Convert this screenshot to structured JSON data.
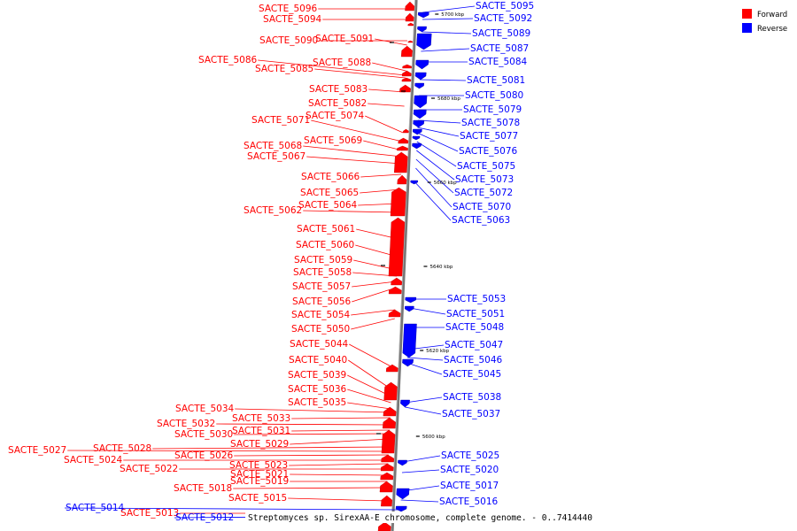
{
  "legend": [
    {
      "label": "Forward",
      "color": "#ff0000"
    },
    {
      "label": "Reverse",
      "color": "#0000ff"
    }
  ],
  "caption": "Streptomyces sp. SirexAA-E chromosome, complete genome. - 0..7414440",
  "ticks": [
    "5700 kbp",
    "5680 kbp",
    "5660 kbp",
    "5640 kbp",
    "5620 kbp",
    "5600 kbp"
  ],
  "forward_labels": [
    "SACTE_5096",
    "SACTE_5094",
    "SACTE_5090",
    "SACTE_5091",
    "SACTE_5086",
    "SACTE_5088",
    "SACTE_5085",
    "SACTE_5083",
    "SACTE_5082",
    "SACTE_5071",
    "SACTE_5074",
    "SACTE_5069",
    "SACTE_5068",
    "SACTE_5067",
    "SACTE_5066",
    "SACTE_5065",
    "SACTE_5064",
    "SACTE_5062",
    "SACTE_5061",
    "SACTE_5060",
    "SACTE_5059",
    "SACTE_5058",
    "SACTE_5057",
    "SACTE_5056",
    "SACTE_5054",
    "SACTE_5050",
    "SACTE_5044",
    "SACTE_5040",
    "SACTE_5039",
    "SACTE_5036",
    "SACTE_5035",
    "SACTE_5034",
    "SACTE_5033",
    "SACTE_5032",
    "SACTE_5031",
    "SACTE_5030",
    "SACTE_5029",
    "SACTE_5028",
    "SACTE_5027",
    "SACTE_5026",
    "SACTE_5024",
    "SACTE_5023",
    "SACTE_5022",
    "SACTE_5021",
    "SACTE_5019",
    "SACTE_5018",
    "SACTE_5015",
    "SACTE_5013"
  ],
  "reverse_labels": [
    "SACTE_5095",
    "SACTE_5092",
    "SACTE_5089",
    "SACTE_5087",
    "SACTE_5084",
    "SACTE_5081",
    "SACTE_5080",
    "SACTE_5079",
    "SACTE_5078",
    "SACTE_5077",
    "SACTE_5076",
    "SACTE_5075",
    "SACTE_5073",
    "SACTE_5072",
    "SACTE_5070",
    "SACTE_5063",
    "SACTE_5053",
    "SACTE_5051",
    "SACTE_5048",
    "SACTE_5047",
    "SACTE_5046",
    "SACTE_5045",
    "SACTE_5038",
    "SACTE_5037",
    "SACTE_5025",
    "SACTE_5020",
    "SACTE_5017",
    "SACTE_5016",
    "SACTE_5014",
    "SACTE_5012"
  ]
}
